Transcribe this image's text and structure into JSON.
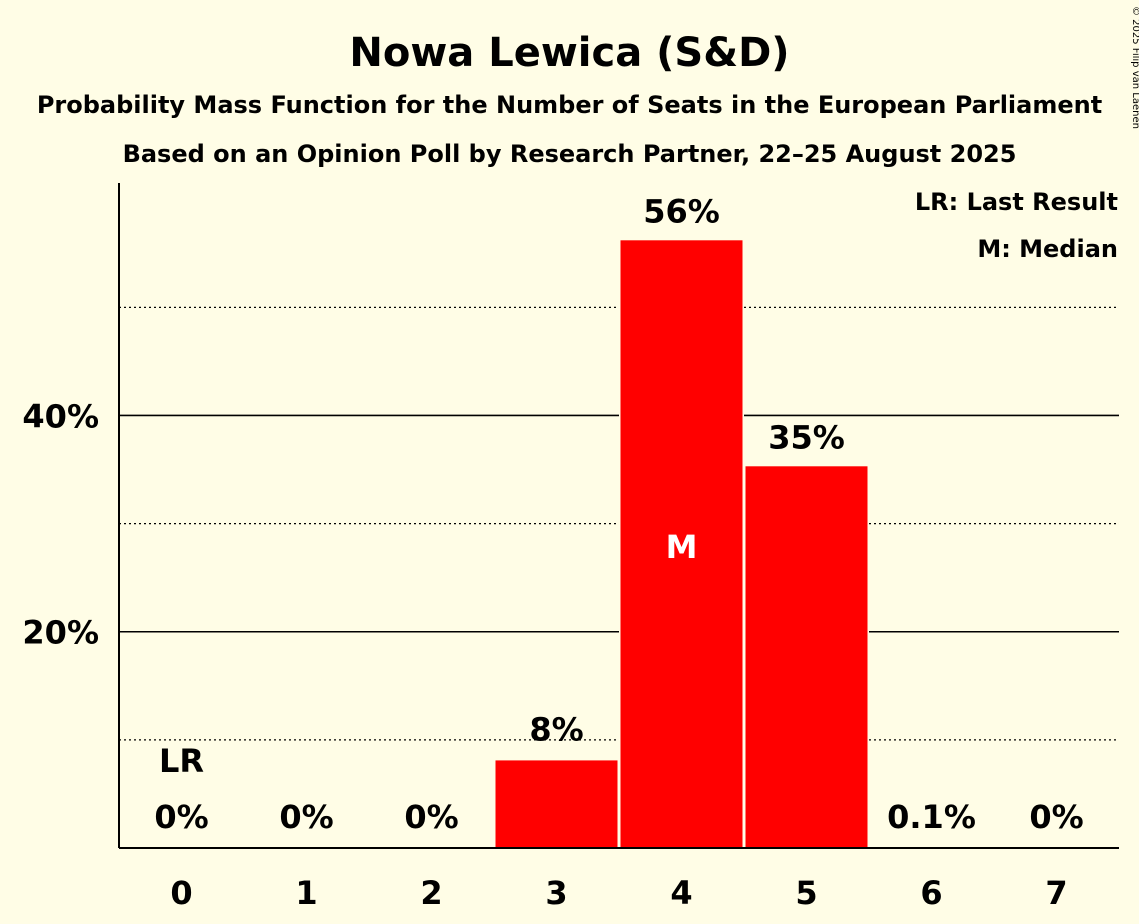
{
  "copyright": "© 2025 Filip van Laenen",
  "chart_data": {
    "type": "bar",
    "title": "Nowa Lewica (S&D)",
    "subtitle": "Probability Mass Function for the Number of Seats in the European Parliament",
    "subtitle2": "Based on an Opinion Poll by Research Partner, 22–25 August 2025",
    "xlabel": "",
    "ylabel": "",
    "categories": [
      "0",
      "1",
      "2",
      "3",
      "4",
      "5",
      "6",
      "7"
    ],
    "values": [
      0,
      0,
      0,
      8.1,
      56.2,
      35.3,
      0.1,
      0
    ],
    "value_labels": [
      "0%",
      "0%",
      "0%",
      "8%",
      "56%",
      "35%",
      "0.1%",
      "0%"
    ],
    "ylim": [
      0,
      61.5
    ],
    "yticks_labeled": [
      20,
      40
    ],
    "ytick_labels": [
      "20%",
      "40%"
    ],
    "gridlines_major": [
      20,
      40
    ],
    "gridlines_minor": [
      10,
      30,
      50
    ],
    "bar_color": "#ff0000",
    "last_result_index": 0,
    "last_result_marker": "LR",
    "median_index": 4,
    "median_marker": "M",
    "legend": [
      "LR: Last Result",
      "M: Median"
    ],
    "legend_position": "top-right"
  }
}
